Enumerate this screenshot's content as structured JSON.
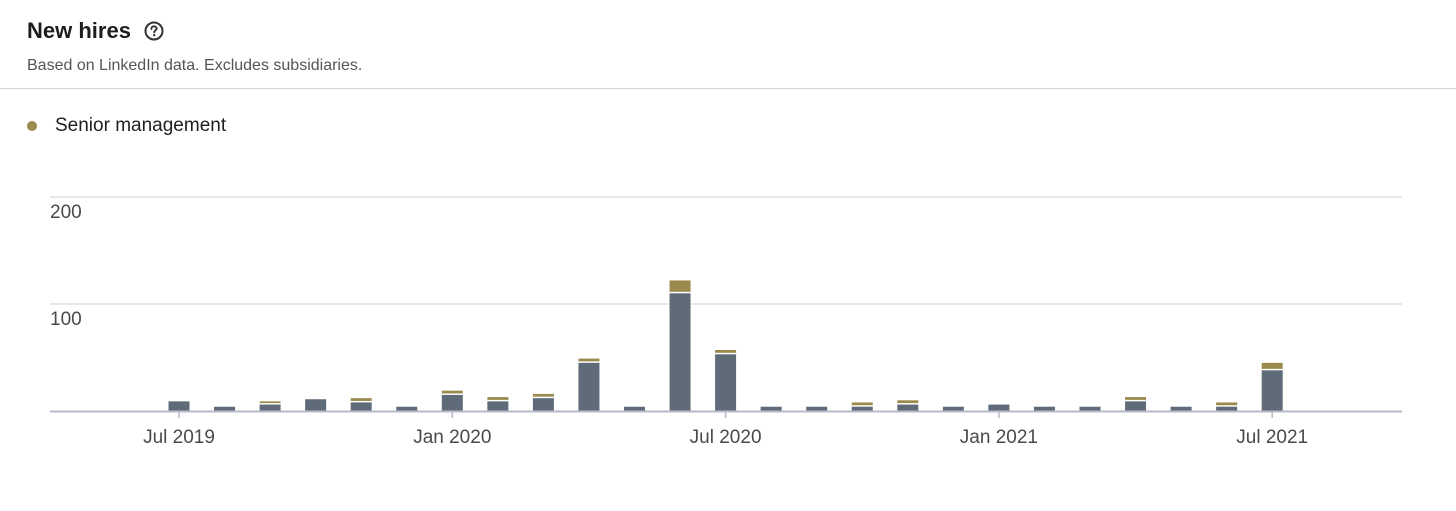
{
  "header": {
    "title": "New hires",
    "subtitle": "Based on LinkedIn data. Excludes subsidiaries."
  },
  "icons": {
    "help": "question-circle-icon"
  },
  "colors": {
    "all_hires": "#5f6b78",
    "senior_management": "#9a8a4e",
    "grid": "#d0d0d0",
    "axis": "#b8b8c8"
  },
  "chart_data": {
    "type": "bar",
    "stacked": true,
    "categories": [
      "2019-06",
      "2019-07",
      "2019-08",
      "2019-09",
      "2019-10",
      "2019-11",
      "2019-12",
      "2020-01",
      "2020-02",
      "2020-03",
      "2020-04",
      "2020-05",
      "2020-06",
      "2020-07",
      "2020-08",
      "2020-09",
      "2020-10",
      "2020-11",
      "2020-12",
      "2021-01",
      "2021-02",
      "2021-03",
      "2021-04",
      "2021-05",
      "2021-06",
      "2021-07",
      "2021-08"
    ],
    "series": [
      {
        "name": "",
        "color": "#5f6b78",
        "values": [
          0,
          9,
          4,
          6,
          11,
          8,
          4,
          15,
          9,
          12,
          45,
          4,
          110,
          53,
          4,
          4,
          4,
          6,
          4,
          6,
          4,
          4,
          9,
          4,
          4,
          38,
          0
        ]
      },
      {
        "name": "Senior management",
        "color": "#9a8a4e",
        "values": [
          0,
          0,
          0,
          3,
          0,
          4,
          0,
          4,
          4,
          4,
          4,
          0,
          12,
          4,
          0,
          0,
          4,
          4,
          0,
          0,
          0,
          0,
          4,
          0,
          4,
          7,
          0
        ]
      }
    ],
    "x_ticks": [
      "Jul 2019",
      "Jan 2020",
      "Jul 2020",
      "Jan 2021",
      "Jul 2021"
    ],
    "y_ticks": [
      "100",
      "200"
    ],
    "ylim": [
      0,
      200
    ],
    "grid": true,
    "legend": {
      "position": "top-left",
      "entries": [
        "Senior management"
      ]
    }
  }
}
